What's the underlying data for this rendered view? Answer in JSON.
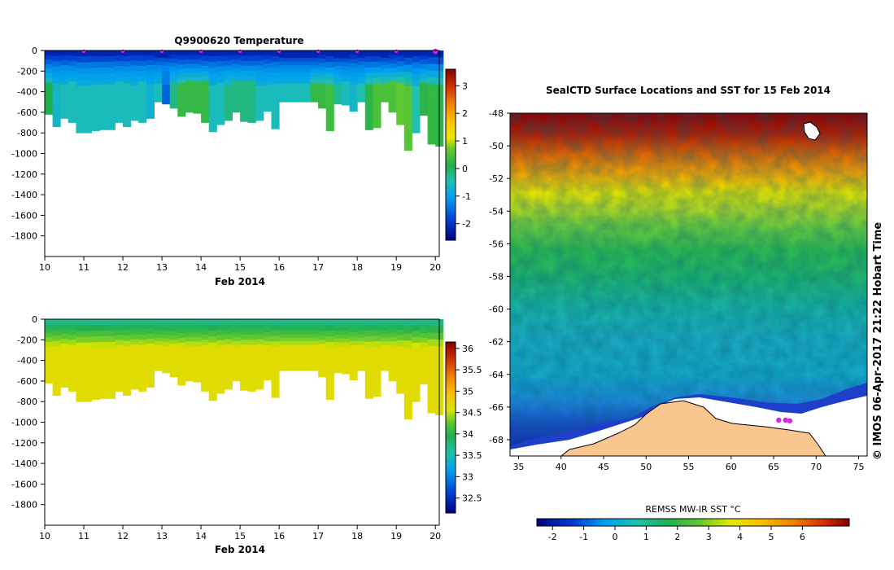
{
  "chart_data": [
    {
      "type": "heatmap",
      "title": "Q9900620  Temperature",
      "xlabel": "Feb 2014",
      "ylabel": "",
      "x_ticks": [
        10,
        11,
        12,
        13,
        14,
        15,
        16,
        17,
        18,
        19,
        20
      ],
      "y_ticks": [
        0,
        -200,
        -400,
        -600,
        -800,
        -1000,
        -1200,
        -1400,
        -1600,
        -1800
      ],
      "xlim": [
        10,
        20.1
      ],
      "ylim": [
        -2000,
        0
      ],
      "colorbar": {
        "range": [
          -2.6,
          3.6
        ],
        "ticks": [
          3,
          2,
          1,
          0,
          -1,
          -2
        ]
      },
      "surface_markers_day": [
        11,
        12,
        13,
        14,
        15,
        16,
        17,
        18,
        19,
        20
      ],
      "profiles": {
        "day": [
          10.0,
          10.2,
          10.4,
          10.6,
          10.8,
          11.0,
          11.2,
          11.4,
          11.6,
          11.8,
          12.0,
          12.2,
          12.4,
          12.6,
          12.8,
          13.0,
          13.2,
          13.4,
          13.6,
          13.8,
          14.0,
          14.2,
          14.4,
          14.6,
          14.8,
          15.0,
          15.2,
          15.4,
          15.6,
          15.8,
          16.0,
          16.2,
          16.4,
          16.6,
          16.8,
          17.0,
          17.2,
          17.4,
          17.6,
          17.8,
          18.0,
          18.2,
          18.4,
          18.6,
          18.8,
          19.0,
          19.2,
          19.4,
          19.6,
          19.8,
          20.0
        ],
        "max_depth_m": [
          620,
          740,
          660,
          700,
          800,
          800,
          780,
          770,
          770,
          700,
          740,
          680,
          700,
          660,
          500,
          520,
          560,
          640,
          600,
          610,
          700,
          790,
          720,
          680,
          600,
          690,
          700,
          680,
          590,
          760,
          500,
          500,
          500,
          500,
          500,
          560,
          780,
          520,
          530,
          590,
          500,
          770,
          750,
          500,
          600,
          720,
          970,
          800,
          630,
          910,
          930
        ],
        "temp_deep_c": [
          0.1,
          -0.7,
          -0.6,
          -0.6,
          -0.6,
          -0.6,
          -0.6,
          -0.6,
          -0.6,
          -0.6,
          -0.6,
          -0.6,
          -0.6,
          -0.8,
          -0.6,
          -1.6,
          -0.2,
          0.3,
          0.3,
          0.3,
          0.3,
          -0.6,
          -0.6,
          -0.2,
          -0.2,
          -0.2,
          -0.2,
          -0.6,
          -0.6,
          -0.6,
          -0.6,
          -0.6,
          -0.6,
          -0.6,
          0.3,
          0.3,
          0.4,
          -0.3,
          -0.6,
          -0.7,
          -0.5,
          0.2,
          0.5,
          0.5,
          0.5,
          0.7,
          0.6,
          -0.5,
          0.2,
          0.3,
          0.2
        ]
      }
    },
    {
      "type": "heatmap",
      "title": "",
      "xlabel": "Feb 2014",
      "ylabel": "",
      "x_ticks": [
        10,
        11,
        12,
        13,
        14,
        15,
        16,
        17,
        18,
        19,
        20
      ],
      "y_ticks": [
        0,
        -200,
        -400,
        -600,
        -800,
        -1000,
        -1200,
        -1400,
        -1600,
        -1800
      ],
      "xlim": [
        10,
        20.1
      ],
      "ylim": [
        -2000,
        0
      ],
      "colorbar": {
        "range": [
          32.15,
          36.15
        ],
        "ticks": [
          36,
          35.5,
          35,
          34.5,
          34,
          33.5,
          33,
          32.5
        ]
      },
      "profiles": {
        "day": [
          10.0,
          10.2,
          10.4,
          10.6,
          10.8,
          11.0,
          11.2,
          11.4,
          11.6,
          11.8,
          12.0,
          12.2,
          12.4,
          12.6,
          12.8,
          13.0,
          13.2,
          13.4,
          13.6,
          13.8,
          14.0,
          14.2,
          14.4,
          14.6,
          14.8,
          15.0,
          15.2,
          15.4,
          15.6,
          15.8,
          16.0,
          16.2,
          16.4,
          16.6,
          16.8,
          17.0,
          17.2,
          17.4,
          17.6,
          17.8,
          18.0,
          18.2,
          18.4,
          18.6,
          18.8,
          19.0,
          19.2,
          19.4,
          19.6,
          19.8,
          20.0
        ],
        "max_depth_m": [
          620,
          740,
          660,
          700,
          800,
          800,
          780,
          770,
          770,
          700,
          740,
          680,
          700,
          660,
          500,
          520,
          560,
          640,
          600,
          610,
          700,
          790,
          720,
          680,
          600,
          690,
          700,
          680,
          590,
          760,
          500,
          500,
          500,
          500,
          500,
          560,
          780,
          520,
          530,
          590,
          500,
          770,
          750,
          500,
          600,
          720,
          970,
          800,
          630,
          910,
          930
        ],
        "salinity_surface_psu": 33.7,
        "salinity_deep_psu": 34.7
      }
    },
    {
      "type": "heatmap",
      "title": "SealCTD Surface Locations and SST for 15 Feb 2014",
      "xlabel": "",
      "ylabel": "",
      "x_ticks": [
        35,
        40,
        45,
        50,
        55,
        60,
        65,
        70,
        75
      ],
      "y_ticks": [
        -48,
        -50,
        -52,
        -54,
        -56,
        -58,
        -60,
        -62,
        -64,
        -66,
        -68
      ],
      "xlim": [
        34,
        76
      ],
      "ylim": [
        -69,
        -48
      ],
      "colorbar": {
        "label": "REMSS MW-IR SST °C",
        "range": [
          -2.5,
          7.5
        ],
        "ticks": [
          -2,
          -1,
          0,
          1,
          2,
          3,
          4,
          5,
          6
        ]
      },
      "surface_locations": [
        {
          "lon": 65.6,
          "lat": -66.8
        },
        {
          "lon": 66.4,
          "lat": -66.8
        },
        {
          "lon": 66.9,
          "lat": -66.85
        }
      ],
      "credit": "© IMOS 06-Apr-2017 21:22 Hobart Time"
    }
  ]
}
